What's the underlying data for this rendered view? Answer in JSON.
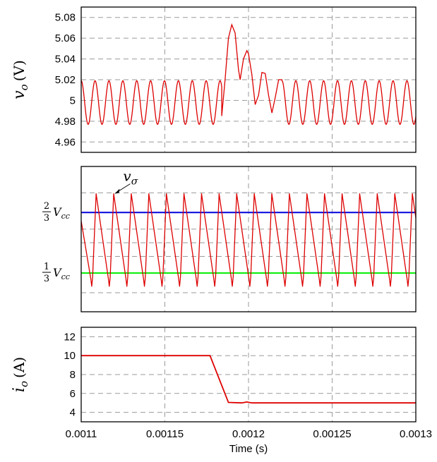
{
  "chart_data": [
    {
      "type": "line",
      "id": "vo",
      "ylabel_symbol": "v",
      "ylabel_sub": "o",
      "ylabel_unit": "(V)",
      "xlim": [
        0.0011,
        0.0013
      ],
      "ylim": [
        4.95,
        5.09
      ],
      "y_ticks": [
        4.96,
        4.98,
        5,
        5.02,
        5.04,
        5.06,
        5.08
      ],
      "y_tick_labels": [
        "4.96",
        "4.98",
        "5",
        "5.02",
        "5.04",
        "5.06",
        "5.08"
      ],
      "grid": true,
      "series": [
        {
          "color": "#dd0000",
          "description_segments": "steady ripple before step, transient after step",
          "steady_mean": 4.998,
          "steady_amplitude": 0.021,
          "ripple_period": 8.3e-06,
          "transient_points": [
            [
              0.001184,
              4.985
            ],
            [
              0.001186,
              5.02
            ],
            [
              0.001188,
              5.06
            ],
            [
              0.00119,
              5.073
            ],
            [
              0.001192,
              5.065
            ],
            [
              0.001194,
              5.03
            ],
            [
              0.001195,
              5.02
            ],
            [
              0.001197,
              5.04
            ],
            [
              0.001199,
              5.048
            ],
            [
              0.0012,
              5.045
            ],
            [
              0.001202,
              5.025
            ],
            [
              0.001204,
              4.996
            ],
            [
              0.001206,
              5.005
            ],
            [
              0.001208,
              5.027
            ],
            [
              0.00121,
              5.026
            ],
            [
              0.001212,
              5.005
            ],
            [
              0.001214,
              4.988
            ],
            [
              0.001216,
              5.003
            ],
            [
              0.001218,
              5.02
            ],
            [
              0.00122,
              5.02
            ]
          ]
        }
      ]
    },
    {
      "type": "line",
      "id": "vsigma",
      "xlim": [
        0.0011,
        0.0013
      ],
      "ylim": [
        0.12,
        0.92
      ],
      "y_ticks": [
        0.3333,
        0.6667
      ],
      "y_tick_labels": [
        {
          "num": "1",
          "den": "3",
          "sym": "V",
          "sub": "cc"
        },
        {
          "num": "2",
          "den": "3",
          "sym": "V",
          "sub": "cc"
        }
      ],
      "grid": true,
      "annotation": {
        "symbol": "v",
        "sub": "σ",
        "x": 0.00112,
        "y": 0.77
      },
      "series": [
        {
          "color": "#0000dd",
          "x": [
            0.0011,
            0.0013
          ],
          "y": [
            0.6667,
            0.6667
          ]
        },
        {
          "color": "#00ee00",
          "x": [
            0.0011,
            0.0013
          ],
          "y": [
            0.3333,
            0.3333
          ]
        },
        {
          "color": "#dd0000",
          "period": 1.05e-05,
          "min": 0.26,
          "max": 0.77,
          "rise_fraction": 0.25,
          "bump": {
            "x": 0.001188,
            "y": 0.79
          }
        }
      ]
    },
    {
      "type": "line",
      "id": "io",
      "ylabel_symbol": "i",
      "ylabel_sub": "o",
      "ylabel_unit": "(A)",
      "xlim": [
        0.0011,
        0.0013
      ],
      "ylim": [
        3,
        13
      ],
      "y_ticks": [
        4,
        6,
        8,
        10,
        12
      ],
      "y_tick_labels": [
        "4",
        "6",
        "8",
        "10",
        "12"
      ],
      "x_ticks": [
        0.0011,
        0.00115,
        0.0012,
        0.00125,
        0.0013
      ],
      "x_tick_labels": [
        "0.0011",
        "0.00115",
        "0.0012",
        "0.00125",
        "0.0013"
      ],
      "xlabel": "Time (s)",
      "grid": true,
      "series": [
        {
          "color": "#dd0000",
          "x": [
            0.0011,
            0.001177,
            0.001188,
            0.001196,
            0.001199,
            0.001202,
            0.0013
          ],
          "y": [
            10,
            10,
            5.05,
            5.0,
            5.1,
            5.0,
            5.0
          ]
        }
      ]
    }
  ]
}
